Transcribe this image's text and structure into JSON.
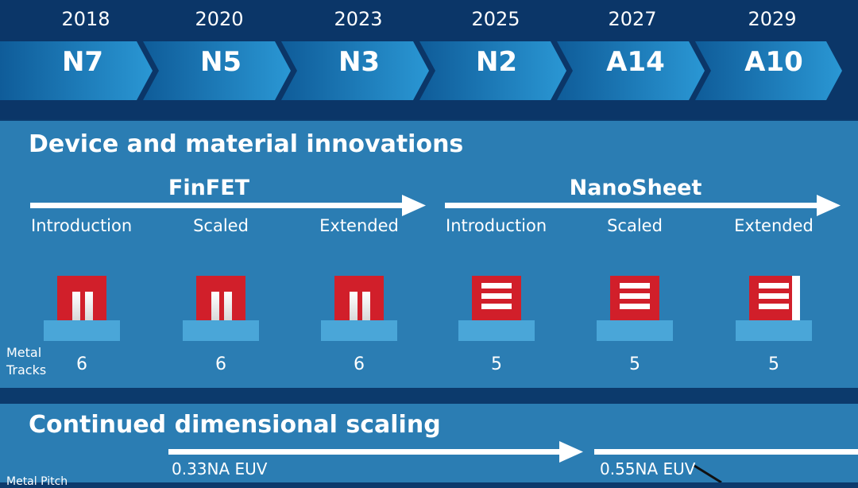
{
  "roadmap": {
    "nodes": [
      {
        "year": "2018",
        "name": "N7"
      },
      {
        "year": "2020",
        "name": "N5"
      },
      {
        "year": "2023",
        "name": "N3"
      },
      {
        "year": "2025",
        "name": "N2"
      },
      {
        "year": "2027",
        "name": "A14"
      },
      {
        "year": "2029",
        "name": "A10"
      }
    ]
  },
  "device_section": {
    "title": "Device and material innovations",
    "finfet": {
      "label": "FinFET"
    },
    "nanosheet": {
      "label": "NanoSheet"
    },
    "stages": [
      "Introduction",
      "Scaled",
      "Extended",
      "Introduction",
      "Scaled",
      "Extended"
    ],
    "metal_tracks_label": [
      "Metal",
      "Tracks"
    ],
    "metal_tracks": [
      "6",
      "6",
      "6",
      "5",
      "5",
      "5"
    ]
  },
  "scaling_section": {
    "title": "Continued dimensional scaling",
    "euv_1": "0.33NA EUV",
    "euv_2": "0.55NA EUV",
    "metal_pitch_label": "Metal Pitch"
  },
  "colors": {
    "header_bg": "#0b3668",
    "chevron": "#1e88c8",
    "panel": "#2b7db3",
    "device_red": "#d11f2a",
    "base_blue": "#4aa6d8"
  }
}
